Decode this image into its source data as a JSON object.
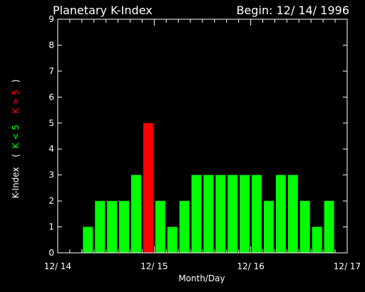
{
  "chart_data": {
    "type": "bar",
    "title": "Planetary K-Index",
    "begin_label": "Begin: 12/ 14/ 1996",
    "xlabel": "Month/Day",
    "ylabel_prefix": "K-Index",
    "legend": {
      "open": "(",
      "green_label": "K < 5",
      "red_label": "K > 5",
      "close": ")"
    },
    "ylim": [
      0,
      9
    ],
    "y_ticks": [
      "0",
      "1",
      "2",
      "3",
      "4",
      "5",
      "6",
      "7",
      "8",
      "9"
    ],
    "x_ticks": [
      "12/ 14",
      "12/ 15",
      "12/ 16",
      "12/ 17"
    ],
    "bins_per_day": 8,
    "values": [
      0,
      0,
      1,
      2,
      2,
      2,
      3,
      5,
      2,
      1,
      2,
      3,
      3,
      3,
      3,
      3,
      3,
      2,
      3,
      3,
      2,
      1,
      2,
      0
    ],
    "threshold": 5,
    "colors": {
      "low": "#00ff00",
      "high": "#ff0000",
      "axes": "#ffffff",
      "background": "#000000"
    }
  }
}
